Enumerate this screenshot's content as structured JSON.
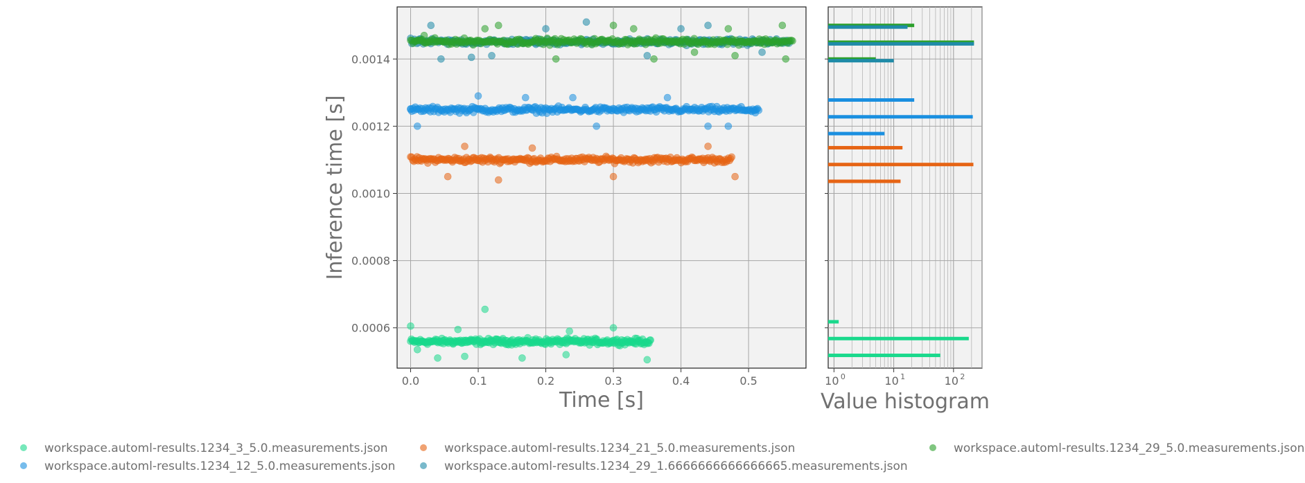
{
  "chart_data": [
    {
      "type": "scatter",
      "xlabel": "Time [s]",
      "ylabel": "Inference time [s]",
      "xlim": [
        -0.02,
        0.585
      ],
      "ylim": [
        0.00048,
        0.001555
      ],
      "x_ticks": [
        0.0,
        0.1,
        0.2,
        0.3,
        0.4,
        0.5
      ],
      "x_tick_labels": [
        "0.0",
        "0.1",
        "0.2",
        "0.3",
        "0.4",
        "0.5"
      ],
      "y_ticks": [
        0.0006,
        0.0008,
        0.001,
        0.0012,
        0.0014
      ],
      "y_tick_labels": [
        "0.0006",
        "0.0008",
        "0.0010",
        "0.0012",
        "0.0014"
      ],
      "grid": true,
      "series": [
        {
          "name": "workspace.automl-results.1234_3_5.0.measurements.json",
          "color": "#1ad98c",
          "x_range": [
            0.0,
            0.355
          ],
          "center": 0.000559,
          "outliers": [
            [
              0.0,
              0.000605
            ],
            [
              0.01,
              0.000535
            ],
            [
              0.04,
              0.00051
            ],
            [
              0.07,
              0.000595
            ],
            [
              0.08,
              0.000515
            ],
            [
              0.11,
              0.000655
            ],
            [
              0.165,
              0.00051
            ],
            [
              0.23,
              0.00052
            ],
            [
              0.235,
              0.00059
            ],
            [
              0.3,
              0.0006
            ],
            [
              0.35,
              0.000505
            ]
          ]
        },
        {
          "name": "workspace.automl-results.1234_21_5.0.measurements.json",
          "color": "#e66414",
          "x_range": [
            0.0,
            0.475
          ],
          "center": 0.0011,
          "outliers": [
            [
              0.055,
              0.00105
            ],
            [
              0.08,
              0.00114
            ],
            [
              0.13,
              0.00104
            ],
            [
              0.18,
              0.001135
            ],
            [
              0.3,
              0.00105
            ],
            [
              0.44,
              0.00114
            ],
            [
              0.48,
              0.00105
            ]
          ]
        },
        {
          "name": "workspace.automl-results.1234_12_5.0.measurements.json",
          "color": "#1a8fe0",
          "x_range": [
            0.0,
            0.515
          ],
          "center": 0.001249,
          "outliers": [
            [
              0.0,
              0.00125
            ],
            [
              0.01,
              0.0012
            ],
            [
              0.1,
              0.00129
            ],
            [
              0.17,
              0.001285
            ],
            [
              0.24,
              0.001285
            ],
            [
              0.275,
              0.0012
            ],
            [
              0.38,
              0.001285
            ],
            [
              0.44,
              0.0012
            ],
            [
              0.47,
              0.0012
            ],
            [
              0.51,
              0.00124
            ]
          ]
        },
        {
          "name": "workspace.automl-results.1234_29_1.6666666666666665.measurements.json",
          "color": "#1f8ba8",
          "x_range": [
            0.0,
            0.56
          ],
          "center": 0.001451,
          "outliers": [
            [
              0.03,
              0.0015
            ],
            [
              0.045,
              0.0014
            ],
            [
              0.09,
              0.001405
            ],
            [
              0.12,
              0.00141
            ],
            [
              0.2,
              0.00149
            ],
            [
              0.26,
              0.00151
            ],
            [
              0.35,
              0.00141
            ],
            [
              0.4,
              0.00149
            ],
            [
              0.44,
              0.0015
            ],
            [
              0.52,
              0.00142
            ],
            [
              0.55,
              0.00145
            ]
          ]
        },
        {
          "name": "workspace.automl-results.1234_29_5.0.measurements.json",
          "color": "#2ca02c",
          "x_range": [
            0.0,
            0.565
          ],
          "center": 0.001452,
          "outliers": [
            [
              0.02,
              0.00147
            ],
            [
              0.11,
              0.00149
            ],
            [
              0.13,
              0.0015
            ],
            [
              0.215,
              0.0014
            ],
            [
              0.3,
              0.0015
            ],
            [
              0.33,
              0.00149
            ],
            [
              0.36,
              0.0014
            ],
            [
              0.42,
              0.00142
            ],
            [
              0.47,
              0.00149
            ],
            [
              0.48,
              0.00141
            ],
            [
              0.55,
              0.0015
            ],
            [
              0.555,
              0.0014
            ]
          ]
        }
      ]
    },
    {
      "type": "bar",
      "orientation": "horizontal",
      "xlabel": "Value histogram",
      "xscale": "log",
      "xlim": [
        0.8,
        300
      ],
      "x_ticks": [
        1,
        10,
        100
      ],
      "x_tick_labels": [
        "10",
        "10",
        "10"
      ],
      "x_tick_exponents": [
        "0",
        "1",
        "2"
      ],
      "grid": true,
      "bars": [
        {
          "y": 0.0015,
          "count": 22,
          "color": "#2ca02c"
        },
        {
          "y": 0.001495,
          "count": 17,
          "color": "#1f8ba8"
        },
        {
          "y": 0.00145,
          "count": 220,
          "color": "#2ca02c"
        },
        {
          "y": 0.001445,
          "count": 220,
          "color": "#1f8ba8"
        },
        {
          "y": 0.0014,
          "count": 5,
          "color": "#2ca02c"
        },
        {
          "y": 0.001395,
          "count": 10,
          "color": "#1f8ba8"
        },
        {
          "y": 0.001278,
          "count": 22,
          "color": "#1a8fe0"
        },
        {
          "y": 0.001228,
          "count": 210,
          "color": "#1a8fe0"
        },
        {
          "y": 0.001178,
          "count": 7,
          "color": "#1a8fe0"
        },
        {
          "y": 0.001136,
          "count": 14,
          "color": "#e66414"
        },
        {
          "y": 0.001086,
          "count": 215,
          "color": "#e66414"
        },
        {
          "y": 0.001036,
          "count": 13,
          "color": "#e66414"
        },
        {
          "y": 0.000618,
          "count": 1.2,
          "color": "#1ad98c"
        },
        {
          "y": 0.000568,
          "count": 180,
          "color": "#1ad98c"
        },
        {
          "y": 0.000518,
          "count": 60,
          "color": "#1ad98c"
        }
      ]
    }
  ]
}
